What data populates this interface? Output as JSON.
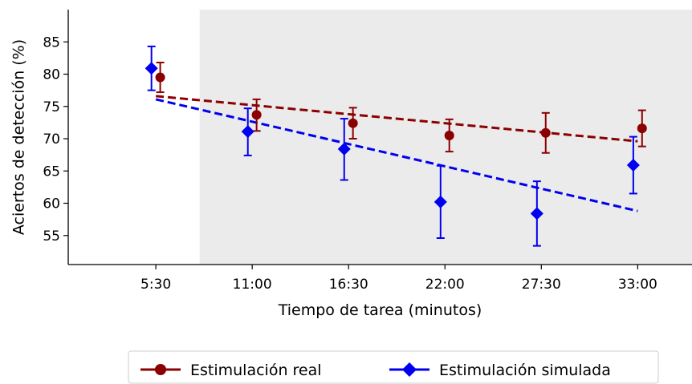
{
  "chart_data": {
    "type": "line",
    "title": "",
    "xlabel": "Tiempo de tarea (minutos)",
    "ylabel": "Aciertos de detección (%)",
    "categories": [
      "5:30",
      "11:00",
      "16:30",
      "22:00",
      "27:30",
      "33:00"
    ],
    "ylim": [
      50.5,
      90
    ],
    "yticks": [
      55,
      60,
      65,
      70,
      75,
      80,
      85
    ],
    "grid": false,
    "shaded_region": {
      "from_x": 8.0,
      "to_x": 36.5,
      "color": "#ebebeb"
    },
    "series": [
      {
        "name": "Estimulación real",
        "color": "#8b0000",
        "marker": "circle",
        "x": [
          5.75,
          11.25,
          16.75,
          22.25,
          27.75,
          33.25
        ],
        "values": [
          79.5,
          73.7,
          72.4,
          70.5,
          70.9,
          71.6
        ],
        "err_low": [
          77.2,
          71.2,
          70.0,
          68.0,
          67.8,
          68.8
        ],
        "err_high": [
          81.8,
          76.1,
          74.8,
          73.0,
          74.0,
          74.4
        ],
        "trend": {
          "x": [
            5.5,
            33.0
          ],
          "y": [
            76.6,
            69.6
          ]
        }
      },
      {
        "name": "Estimulación simulada",
        "color": "#0000ee",
        "marker": "diamond",
        "x": [
          5.25,
          10.75,
          16.25,
          21.75,
          27.25,
          32.75
        ],
        "values": [
          80.9,
          71.1,
          68.4,
          60.2,
          58.4,
          65.9
        ],
        "err_low": [
          77.5,
          67.4,
          63.6,
          54.6,
          53.4,
          61.5
        ],
        "err_high": [
          84.3,
          74.7,
          73.1,
          65.8,
          63.4,
          70.3
        ],
        "trend": {
          "x": [
            5.5,
            33.0
          ],
          "y": [
            76.1,
            58.8
          ]
        }
      }
    ],
    "legend": {
      "position": "bottom",
      "entries": [
        "Estimulación real",
        "Estimulación simulada"
      ]
    }
  }
}
